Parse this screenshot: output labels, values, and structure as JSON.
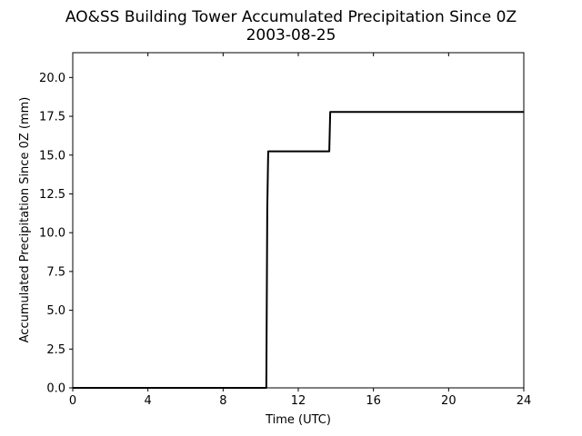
{
  "chart_data": {
    "type": "line",
    "title": "AO&SS Building Tower Accumulated Precipitation Since 0Z",
    "subtitle": "2003-08-25",
    "xlabel": "Time (UTC)",
    "ylabel": "Accumulated Precipitation Since 0Z (mm)",
    "xlim": [
      0,
      24
    ],
    "ylim": [
      0,
      21.6
    ],
    "xticks": [
      "0",
      "4",
      "8",
      "12",
      "16",
      "20",
      "24"
    ],
    "yticks": [
      "0.0",
      "2.5",
      "5.0",
      "7.5",
      "10.0",
      "12.5",
      "15.0",
      "17.5",
      "20.0"
    ],
    "grid": false,
    "series": [
      {
        "color": "#000000",
        "x": [
          0,
          10.3,
          10.35,
          10.4,
          13.65,
          13.7,
          24
        ],
        "y": [
          0.0,
          0.0,
          11.5,
          15.24,
          15.24,
          17.78,
          17.78
        ]
      }
    ]
  }
}
